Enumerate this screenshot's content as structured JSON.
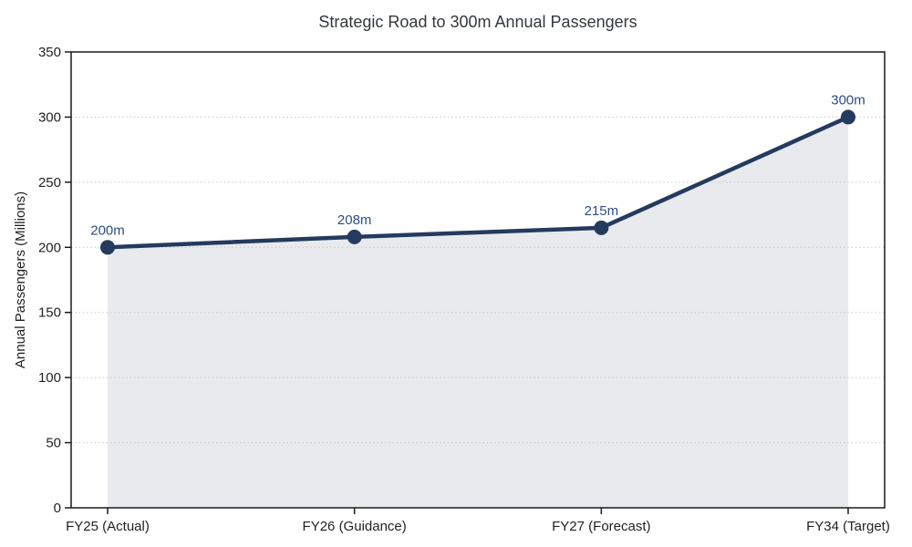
{
  "chart_data": {
    "type": "area",
    "title": "Strategic Road to 300m Annual Passengers",
    "xlabel": "",
    "ylabel": "Annual Passengers (Millions)",
    "categories": [
      "FY25 (Actual)",
      "FY26 (Guidance)",
      "FY27 (Forecast)",
      "FY34 (Target)"
    ],
    "values": [
      200,
      208,
      215,
      300
    ],
    "point_labels": [
      "200m",
      "208m",
      "215m",
      "300m"
    ],
    "ylim": [
      0,
      350
    ],
    "yticks": [
      0,
      50,
      100,
      150,
      200,
      250,
      300,
      350
    ],
    "grid": "horizontal-dotted",
    "legend": "none",
    "colors": {
      "line": "#243a5e",
      "marker": "#243a5e",
      "area_fill": "#e8eaee",
      "point_label": "#2f4d80",
      "title": "#34373c",
      "tick": "#1f2023",
      "grid": "#c9c9c9",
      "spine": "#1a1a1a",
      "background": "#ffffff"
    }
  }
}
